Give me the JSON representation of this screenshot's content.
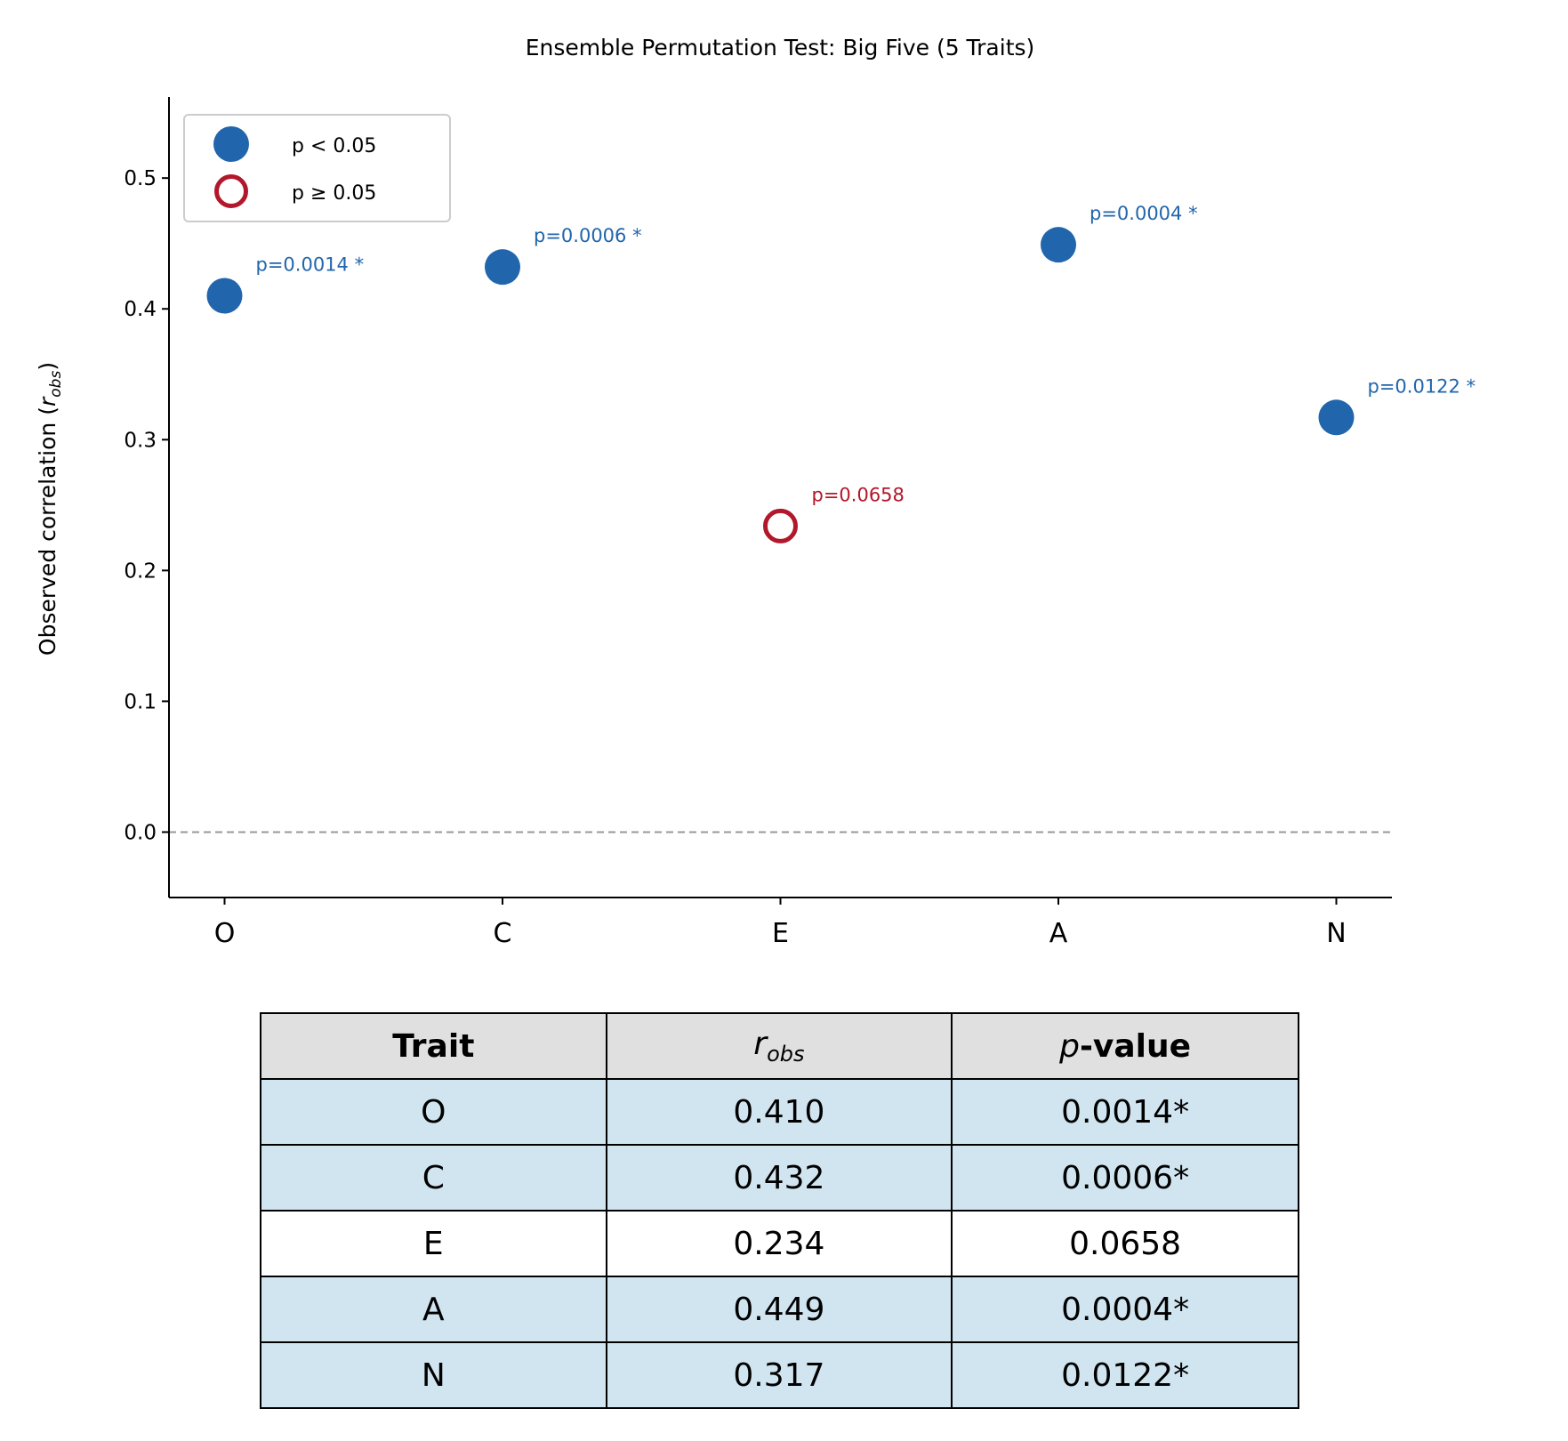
{
  "chart_data": {
    "type": "scatter",
    "title": "Ensemble Permutation Test: Big Five (5 Traits)",
    "xlabel": "",
    "ylabel": "Observed correlation (r_obs)",
    "ylabel_main": "Observed correlation (",
    "ylabel_sub": "obs",
    "categories": [
      "O",
      "C",
      "E",
      "A",
      "N"
    ],
    "values": [
      0.41,
      0.432,
      0.234,
      0.449,
      0.317
    ],
    "p_values": [
      0.0014,
      0.0006,
      0.0658,
      0.0004,
      0.0122
    ],
    "annotations": [
      "p=0.0014 *",
      "p=0.0006 *",
      "p=0.0658",
      "p=0.0004 *",
      "p=0.0122 *"
    ],
    "significant": [
      true,
      true,
      false,
      true,
      true
    ],
    "ylim": [
      -0.05,
      0.562
    ],
    "xlim": [
      -0.2,
      4.2
    ],
    "yticks": [
      "0.0",
      "0.1",
      "0.2",
      "0.3",
      "0.4",
      "0.5"
    ],
    "reference_line": 0.0,
    "grid": false,
    "legend": {
      "placement": "top-left",
      "entries": [
        "p < 0.05",
        "p ≥ 0.05"
      ]
    },
    "colors": {
      "significant": "#2166ac",
      "not_significant": "#b2182b",
      "reference": "#999999"
    }
  },
  "table": {
    "headers": {
      "trait": "Trait",
      "r_main": "r",
      "r_sub": "obs",
      "p_italic": "p",
      "p_rest": "-value"
    },
    "rows": [
      {
        "trait": "O",
        "r": "0.410",
        "p": "0.0014*"
      },
      {
        "trait": "C",
        "r": "0.432",
        "p": "0.0006*"
      },
      {
        "trait": "E",
        "r": "0.234",
        "p": "0.0658"
      },
      {
        "trait": "A",
        "r": "0.449",
        "p": "0.0004*"
      },
      {
        "trait": "N",
        "r": "0.317",
        "p": "0.0122*"
      }
    ],
    "colors": {
      "significant_row": "#d1e5f0",
      "header": "#e0e0e0"
    }
  }
}
